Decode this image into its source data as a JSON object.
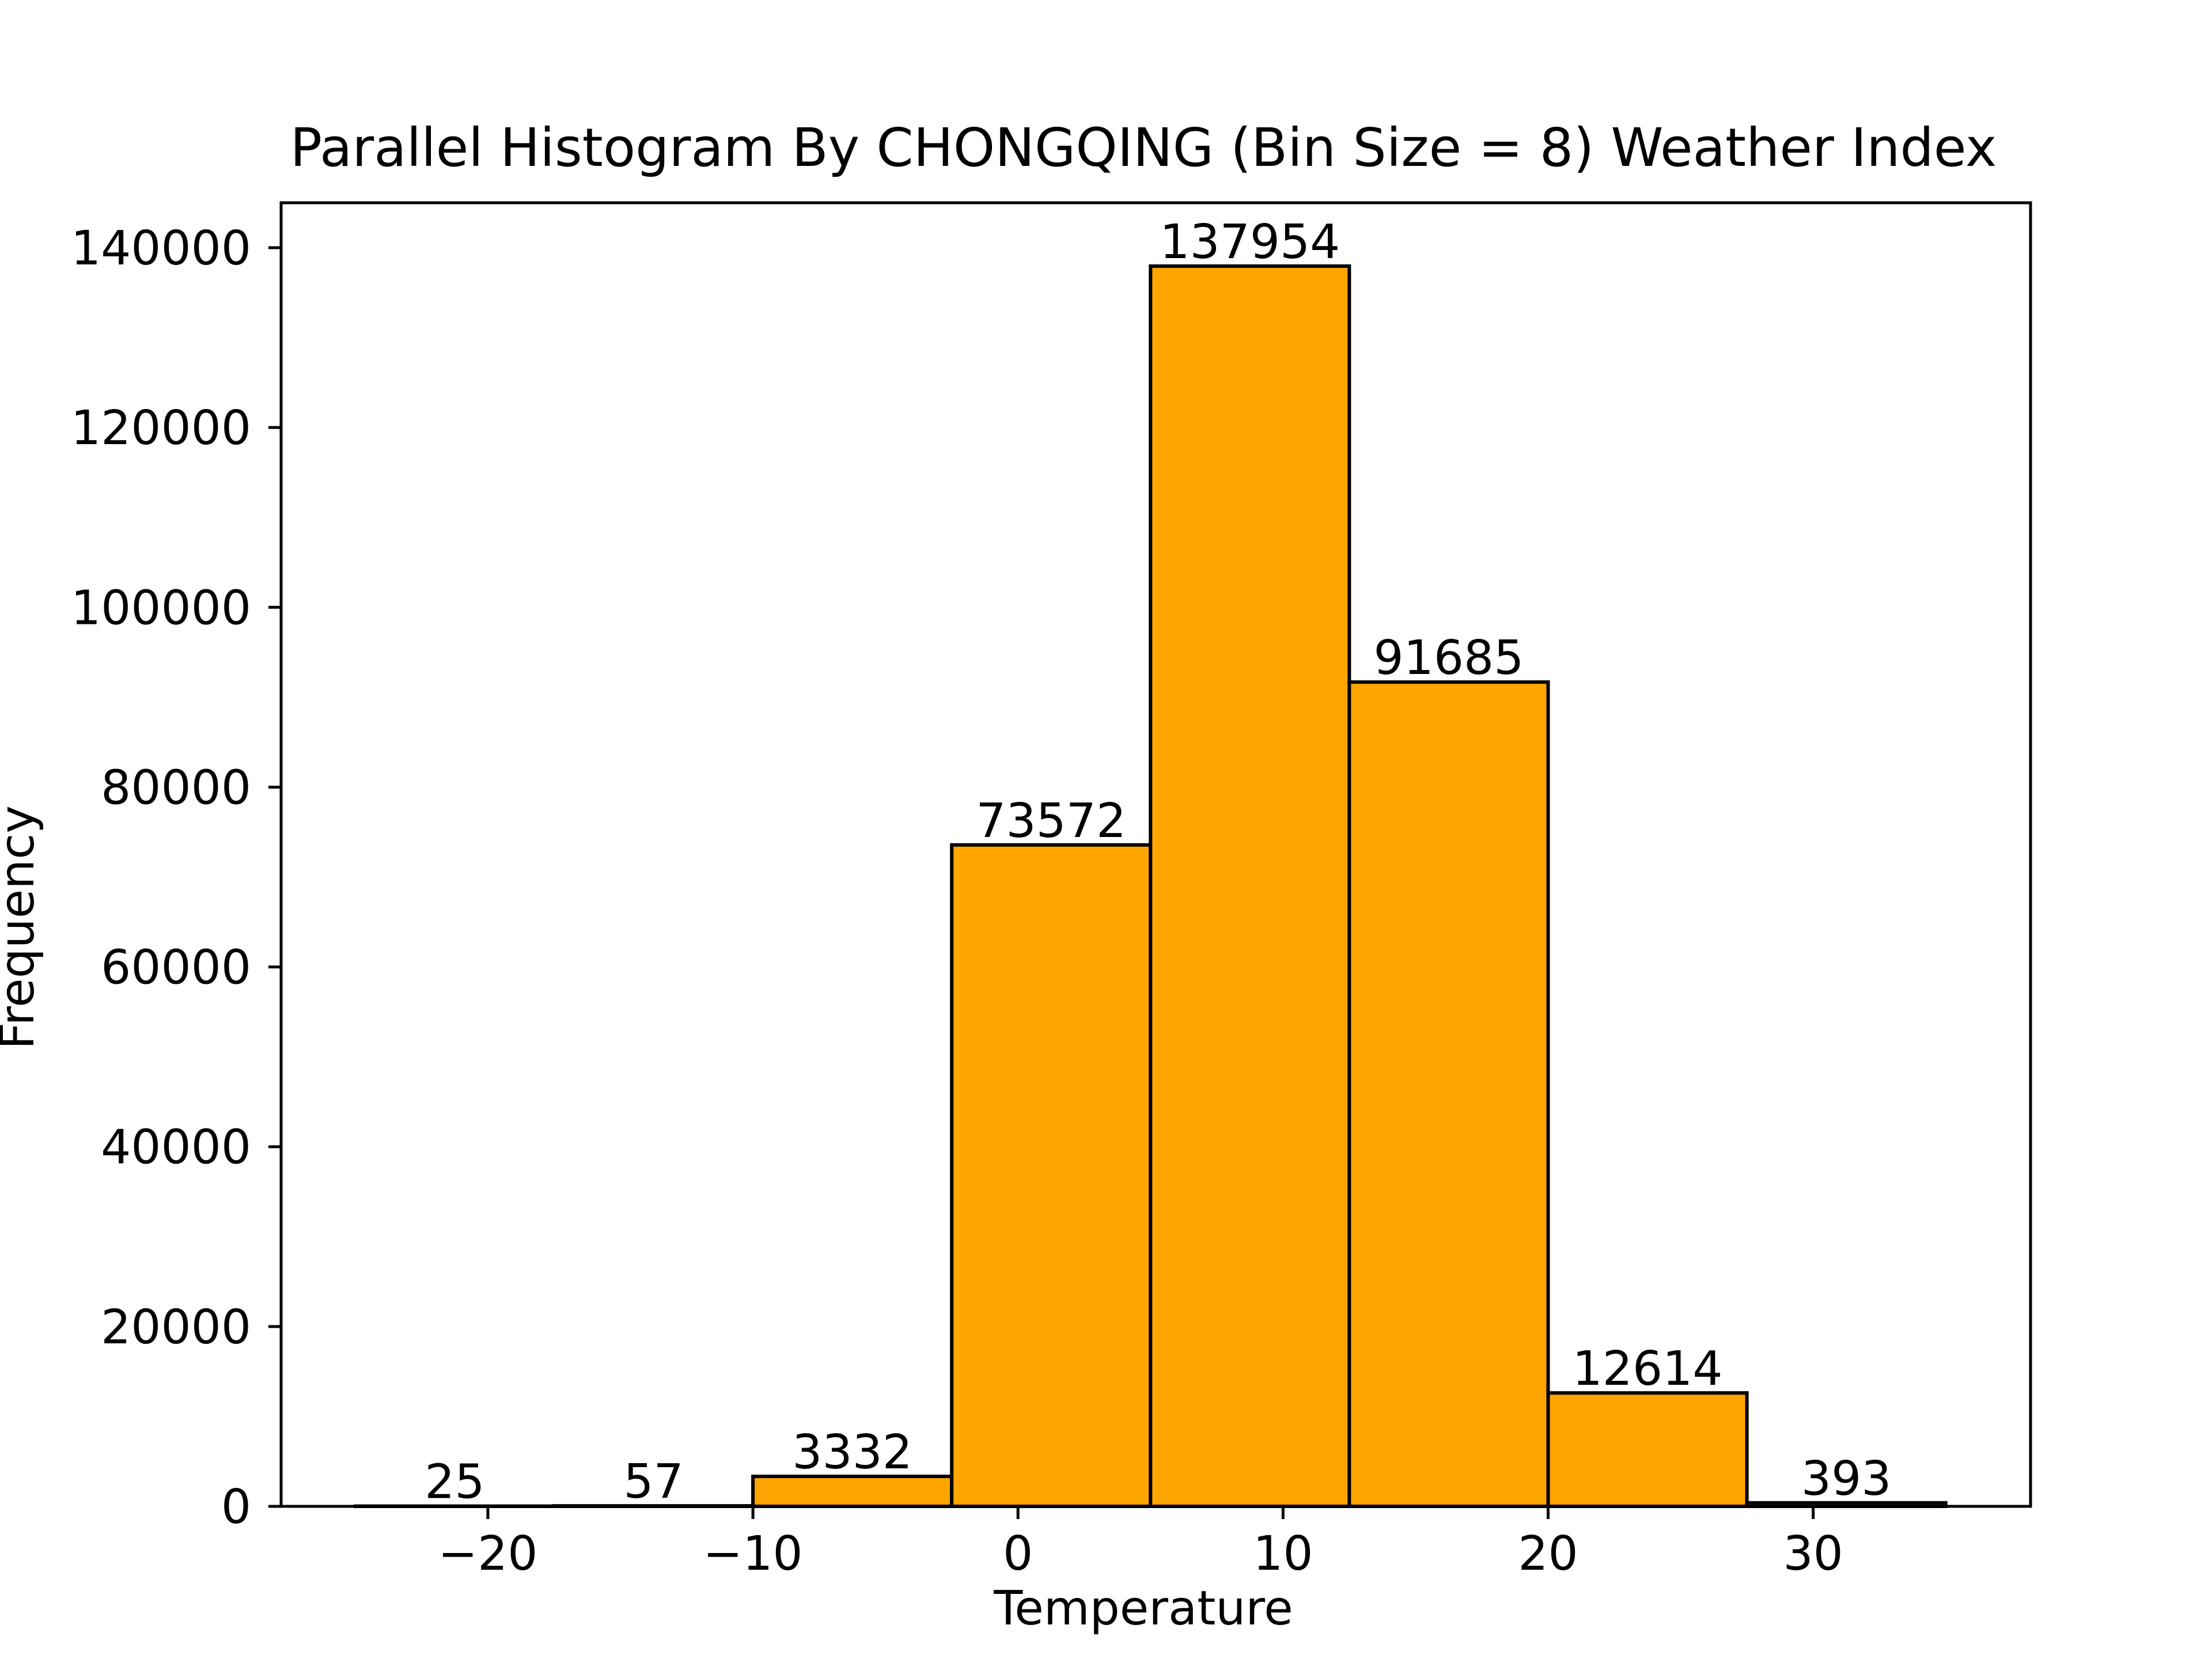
{
  "chart_data": {
    "type": "bar",
    "title": "Parallel Histogram By CHONGQING (Bin Size = 8) Weather Index",
    "xlabel": "Temperature",
    "ylabel": "Frequency",
    "bin_edges": [
      -25,
      -17.5,
      -10,
      -2.5,
      5,
      12.5,
      20,
      27.5,
      35
    ],
    "values": [
      25,
      57,
      3332,
      73572,
      137954,
      91685,
      12614,
      393
    ],
    "value_labels": [
      "25",
      "57",
      "3332",
      "73572",
      "137954",
      "91685",
      "12614",
      "393"
    ],
    "xlim": [
      -27.8,
      38.2
    ],
    "ylim": [
      0,
      145000
    ],
    "x_ticks": [
      -20,
      -10,
      0,
      10,
      20,
      30
    ],
    "x_tick_labels": [
      "−20",
      "−10",
      "0",
      "10",
      "20",
      "30"
    ],
    "y_ticks": [
      0,
      20000,
      40000,
      60000,
      80000,
      100000,
      120000,
      140000
    ],
    "y_tick_labels": [
      "0",
      "20000",
      "40000",
      "60000",
      "80000",
      "100000",
      "120000",
      "140000"
    ],
    "bar_color": "#FFA500",
    "edge_color": "#000000",
    "grid": false,
    "legend": "none"
  }
}
